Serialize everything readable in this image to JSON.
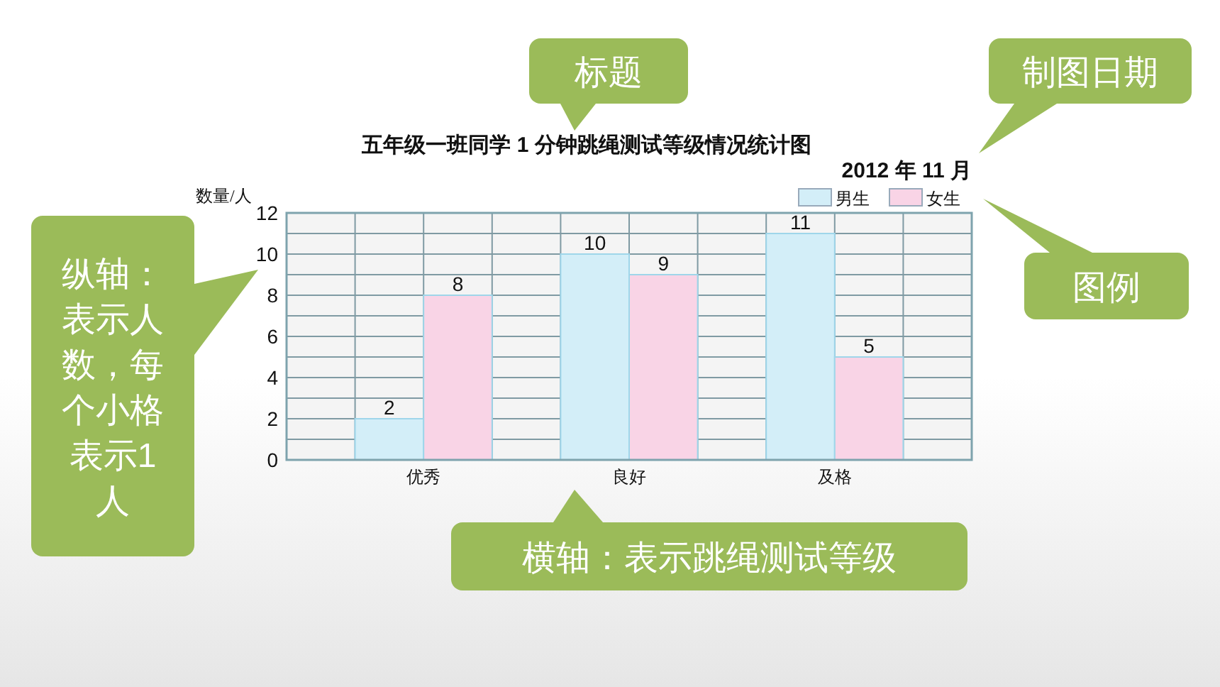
{
  "chart_data": {
    "type": "bar",
    "title": "五年级一班同学 1 分钟跳绳测试等级情况统计图",
    "subtitle": "2012 年 11 月",
    "ylabel": "数量/人",
    "categories": [
      "优秀",
      "良好",
      "及格"
    ],
    "series": [
      {
        "name": "男生",
        "color": "#d3eef8",
        "values": [
          2,
          10,
          11
        ]
      },
      {
        "name": "女生",
        "color": "#f9d4e6",
        "values": [
          8,
          9,
          5
        ]
      }
    ],
    "ylim": [
      0,
      12
    ],
    "yticks": [
      0,
      2,
      4,
      6,
      8,
      10,
      12
    ],
    "grid": true,
    "legend": "top right",
    "data_labels": true,
    "annotations": [
      "标题",
      "制图日期",
      "纵轴：表示人数，每个小格表示1人",
      "图例",
      "横轴：表示跳绳测试等级"
    ]
  }
}
